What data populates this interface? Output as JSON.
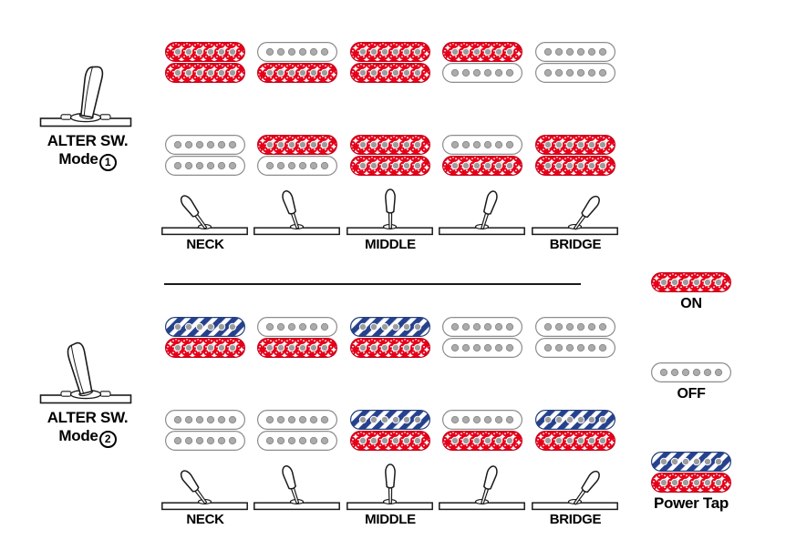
{
  "colors": {
    "coil_on_red": "#e60019",
    "coil_tap_blue": "#26418e",
    "pole_gray": "#a6a6a6",
    "outline_black": "#1a1a1a"
  },
  "modes": [
    {
      "switch_label_line1": "ALTER SW.",
      "switch_label_line2": "Mode",
      "mode_number": "1",
      "lever_tilt": 10,
      "positions": [
        {
          "label": "NECK",
          "lever_angle": -36,
          "neck_coils": [
            "on",
            "on"
          ],
          "bridge_coils": [
            "off",
            "off"
          ]
        },
        {
          "label": "",
          "lever_angle": -18,
          "neck_coils": [
            "off",
            "on"
          ],
          "bridge_coils": [
            "on",
            "off"
          ]
        },
        {
          "label": "MIDDLE",
          "lever_angle": 0,
          "neck_coils": [
            "on",
            "on"
          ],
          "bridge_coils": [
            "on",
            "on"
          ]
        },
        {
          "label": "",
          "lever_angle": 18,
          "neck_coils": [
            "on",
            "off"
          ],
          "bridge_coils": [
            "off",
            "on"
          ]
        },
        {
          "label": "BRIDGE",
          "lever_angle": 36,
          "neck_coils": [
            "off",
            "off"
          ],
          "bridge_coils": [
            "on",
            "on"
          ]
        }
      ]
    },
    {
      "switch_label_line1": "ALTER SW.",
      "switch_label_line2": "Mode",
      "mode_number": "2",
      "lever_tilt": -14,
      "positions": [
        {
          "label": "NECK",
          "lever_angle": -36,
          "neck_coils": [
            "tap",
            "on"
          ],
          "bridge_coils": [
            "off",
            "off"
          ]
        },
        {
          "label": "",
          "lever_angle": -18,
          "neck_coils": [
            "off",
            "on"
          ],
          "bridge_coils": [
            "off",
            "off"
          ]
        },
        {
          "label": "MIDDLE",
          "lever_angle": 0,
          "neck_coils": [
            "tap",
            "on"
          ],
          "bridge_coils": [
            "tap",
            "on"
          ]
        },
        {
          "label": "",
          "lever_angle": 18,
          "neck_coils": [
            "off",
            "off"
          ],
          "bridge_coils": [
            "off",
            "on"
          ]
        },
        {
          "label": "BRIDGE",
          "lever_angle": 36,
          "neck_coils": [
            "off",
            "off"
          ],
          "bridge_coils": [
            "tap",
            "on"
          ]
        }
      ]
    }
  ],
  "legend": [
    {
      "coils": [
        "on"
      ],
      "label": "ON"
    },
    {
      "coils": [
        "off"
      ],
      "label": "OFF"
    },
    {
      "coils": [
        "tap",
        "on"
      ],
      "label": "Power Tap"
    }
  ]
}
